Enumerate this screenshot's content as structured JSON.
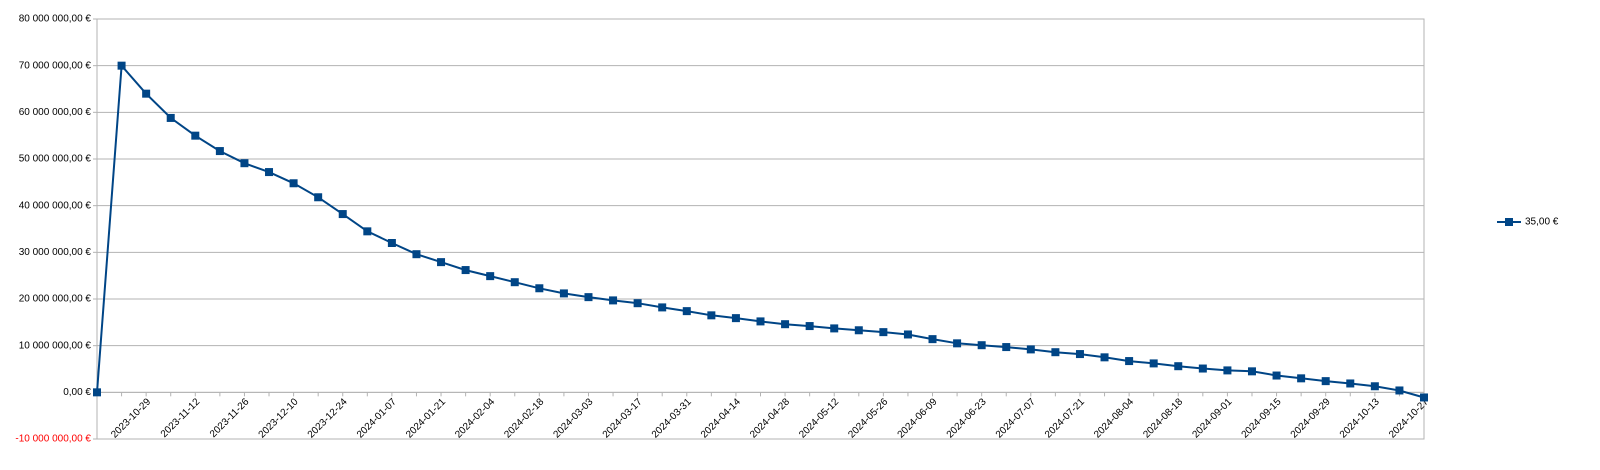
{
  "chart_data": {
    "type": "line",
    "categories": [
      null,
      null,
      "2023-10-29",
      null,
      "2023-11-12",
      null,
      "2023-11-26",
      null,
      "2023-12-10",
      null,
      "2023-12-24",
      null,
      "2024-01-07",
      null,
      "2024-01-21",
      null,
      "2024-02-04",
      null,
      "2024-02-18",
      null,
      "2024-03-03",
      null,
      "2024-03-17",
      null,
      "2024-03-31",
      null,
      "2024-04-14",
      null,
      "2024-04-28",
      null,
      "2024-05-12",
      null,
      "2024-05-26",
      null,
      "2024-06-09",
      null,
      "2024-06-23",
      null,
      "2024-07-07",
      null,
      "2024-07-21",
      null,
      "2024-08-04",
      null,
      "2024-08-18",
      null,
      "2024-09-01",
      null,
      "2024-09-15",
      null,
      "2024-09-29",
      null,
      "2024-10-13",
      null,
      "2024-10-27"
    ],
    "series": [
      {
        "name": "35,00 €",
        "color": "#004586",
        "values": [
          0,
          70000000,
          64000000,
          58800000,
          55000000,
          51700000,
          49100000,
          47200000,
          44800000,
          41800000,
          38200000,
          34500000,
          32000000,
          29600000,
          27900000,
          26200000,
          24900000,
          23600000,
          22300000,
          21200000,
          20400000,
          19700000,
          19100000,
          18200000,
          17400000,
          16500000,
          15900000,
          15200000,
          14600000,
          14200000,
          13700000,
          13300000,
          12900000,
          12400000,
          11400000,
          10500000,
          10100000,
          9700000,
          9200000,
          8600000,
          8200000,
          7500000,
          6700000,
          6200000,
          5600000,
          5100000,
          4700000,
          4500000,
          3600000,
          3000000,
          2400000,
          1900000,
          1300000,
          400000,
          -1100000
        ]
      }
    ],
    "ylim": [
      -10000000,
      80000000
    ],
    "yticks": [
      {
        "value": -10000000,
        "label": "-10 000 000,00 €"
      },
      {
        "value": 0,
        "label": "0,00 €"
      },
      {
        "value": 10000000,
        "label": "10 000 000,00 €"
      },
      {
        "value": 20000000,
        "label": "20 000 000,00 €"
      },
      {
        "value": 30000000,
        "label": "30 000 000,00 €"
      },
      {
        "value": 40000000,
        "label": "40 000 000,00 €"
      },
      {
        "value": 50000000,
        "label": "50 000 000,00 €"
      },
      {
        "value": 60000000,
        "label": "60 000 000,00 €"
      },
      {
        "value": 70000000,
        "label": "70 000 000,00 €"
      },
      {
        "value": 80000000,
        "label": "80 000 000,00 €"
      }
    ],
    "grid": true,
    "negative_label_color": "#ff0000",
    "legend": "right"
  }
}
